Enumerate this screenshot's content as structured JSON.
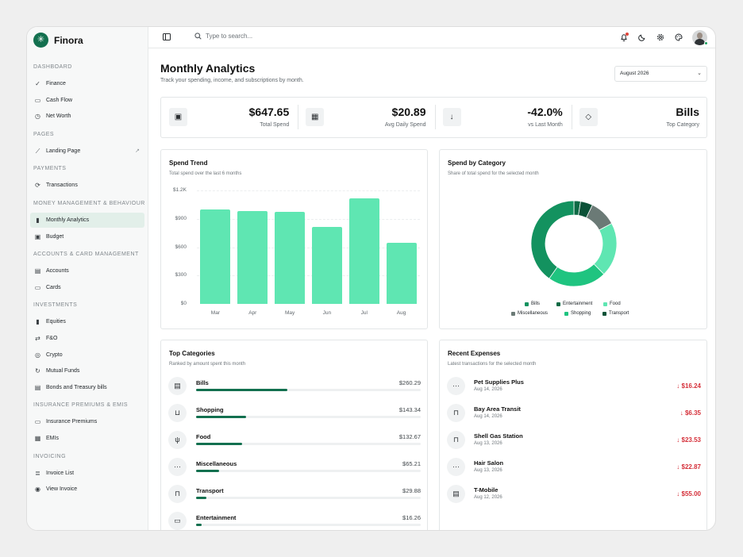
{
  "app": {
    "name": "Finora",
    "logo_icon": "asterisk-icon"
  },
  "topbar": {
    "search_placeholder": "Type to search..."
  },
  "sidebar": {
    "sections": [
      {
        "title": "Dashboard",
        "items": [
          {
            "label": "Finance",
            "icon": "badge-check-icon"
          },
          {
            "label": "Cash Flow",
            "icon": "banknote-icon"
          },
          {
            "label": "Net Worth",
            "icon": "clock-icon"
          }
        ]
      },
      {
        "title": "Pages",
        "items": [
          {
            "label": "Landing Page",
            "icon": "trend-chart-icon",
            "external": "external-link-icon"
          }
        ]
      },
      {
        "title": "Payments",
        "items": [
          {
            "label": "Transactions",
            "icon": "arrows-circle-icon"
          }
        ]
      },
      {
        "title": "Money Management & Behaviour",
        "items": [
          {
            "label": "Monthly Analytics",
            "icon": "bar-chart-icon",
            "active": true
          },
          {
            "label": "Budget",
            "icon": "wallet-icon"
          }
        ]
      },
      {
        "title": "Accounts & Card Management",
        "items": [
          {
            "label": "Accounts",
            "icon": "user-card-icon"
          },
          {
            "label": "Cards",
            "icon": "credit-card-icon"
          }
        ]
      },
      {
        "title": "Investments",
        "items": [
          {
            "label": "Equities",
            "icon": "bar-chart-icon"
          },
          {
            "label": "F&O",
            "icon": "swap-icon"
          },
          {
            "label": "Crypto",
            "icon": "coins-icon"
          },
          {
            "label": "Mutual Funds",
            "icon": "refresh-icon"
          },
          {
            "label": "Bonds and Treasury bills",
            "icon": "document-icon"
          }
        ]
      },
      {
        "title": "Insurance Premiums & EMIs",
        "items": [
          {
            "label": "Insurance Premiums",
            "icon": "credit-card-icon"
          },
          {
            "label": "EMIs",
            "icon": "calendar-icon"
          }
        ]
      },
      {
        "title": "Invoicing",
        "items": [
          {
            "label": "Invoice List",
            "icon": "document-list-icon"
          },
          {
            "label": "View Invoice",
            "icon": "eye-icon"
          }
        ]
      }
    ]
  },
  "header": {
    "title": "Monthly Analytics",
    "subtitle": "Track your spending, income, and subscriptions by month.",
    "month_select": "August 2026"
  },
  "stats": [
    {
      "icon": "wallet-icon",
      "value": "$647.65",
      "label": "Total Spend"
    },
    {
      "icon": "calendar-icon",
      "value": "$20.89",
      "label": "Avg Daily Spend"
    },
    {
      "icon": "arrow-down-icon",
      "value": "-42.0%",
      "label": "vs Last Month"
    },
    {
      "icon": "tag-icon",
      "value": "Bills",
      "label": "Top Category"
    }
  ],
  "spend_trend": {
    "title": "Spend Trend",
    "subtitle": "Total spend over the last 6 months"
  },
  "spend_by_category": {
    "title": "Spend by Category",
    "subtitle": "Share of total spend for the selected month"
  },
  "chart_data": [
    {
      "type": "bar",
      "title": "Spend Trend",
      "categories": [
        "Mar",
        "Apr",
        "May",
        "Jun",
        "Jul",
        "Aug"
      ],
      "values": [
        1000,
        980,
        970,
        810,
        1120,
        650
      ],
      "yticks": [
        "$0",
        "$300",
        "$600",
        "$900",
        "$1.2K"
      ],
      "ylim": [
        0,
        1200
      ],
      "color": "#5fe6b2",
      "grid": "horizontal dashed"
    },
    {
      "type": "pie",
      "title": "Spend by Category",
      "donut": true,
      "categories": [
        "Bills",
        "Entertainment",
        "Food",
        "Miscellaneous",
        "Shopping",
        "Transport"
      ],
      "values": [
        260.29,
        16.26,
        132.67,
        65.21,
        143.34,
        29.88
      ],
      "colors": [
        "#13925f",
        "#0e6a45",
        "#5fe6b2",
        "#6b7a76",
        "#1fc480",
        "#0c5238"
      ],
      "legend": "bottom"
    }
  ],
  "top_categories": {
    "title": "Top Categories",
    "subtitle": "Ranked by amount spent this month",
    "items": [
      {
        "name": "Bills",
        "amount": "$260.29",
        "value": 260.29,
        "icon": "receipt-icon"
      },
      {
        "name": "Shopping",
        "amount": "$143.34",
        "value": 143.34,
        "icon": "shopping-bag-icon"
      },
      {
        "name": "Food",
        "amount": "$132.67",
        "value": 132.67,
        "icon": "utensils-icon"
      },
      {
        "name": "Miscellaneous",
        "amount": "$65.21",
        "value": 65.21,
        "icon": "ellipsis-icon"
      },
      {
        "name": "Transport",
        "amount": "$29.88",
        "value": 29.88,
        "icon": "car-icon"
      },
      {
        "name": "Entertainment",
        "amount": "$16.26",
        "value": 16.26,
        "icon": "tv-icon"
      }
    ]
  },
  "recent_expenses": {
    "title": "Recent Expenses",
    "subtitle": "Latest transactions for the selected month",
    "items": [
      {
        "name": "Pet Supplies Plus",
        "date": "Aug 14, 2026",
        "amount": "$16.24",
        "icon": "ellipsis-icon"
      },
      {
        "name": "Bay Area Transit",
        "date": "Aug 14, 2026",
        "amount": "$6.35",
        "icon": "car-icon"
      },
      {
        "name": "Shell Gas Station",
        "date": "Aug 13, 2026",
        "amount": "$23.53",
        "icon": "car-icon"
      },
      {
        "name": "Hair Salon",
        "date": "Aug 13, 2026",
        "amount": "$22.87",
        "icon": "ellipsis-icon"
      },
      {
        "name": "T-Mobile",
        "date": "Aug 12, 2026",
        "amount": "$55.00",
        "icon": "receipt-icon"
      }
    ]
  },
  "colors": {
    "brand": "#13704f",
    "bar": "#5fe6b2",
    "negative": "#d5303a",
    "active_nav": "#e2efe9"
  }
}
